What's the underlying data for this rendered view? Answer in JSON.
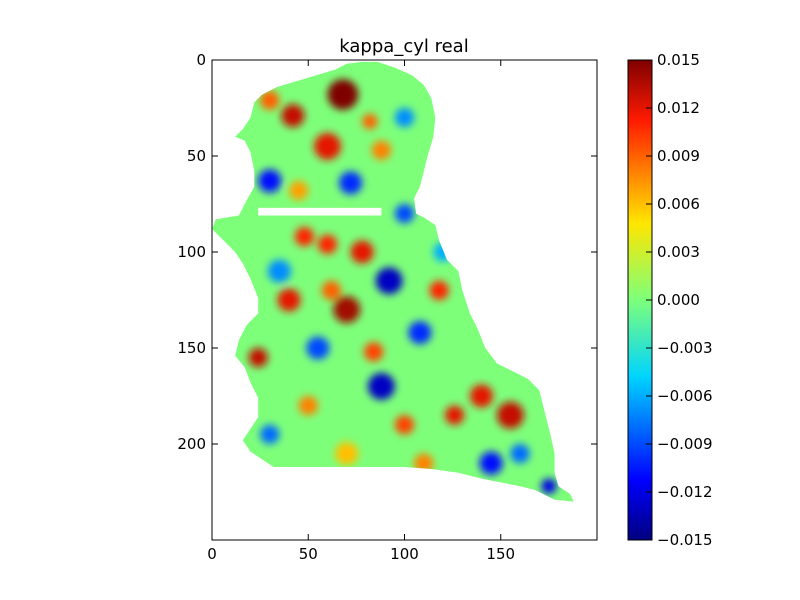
{
  "chart_data": {
    "type": "heatmap",
    "title": "kappa_cyl real",
    "xlabel": "",
    "ylabel": "",
    "xlim": [
      0,
      200
    ],
    "ylim": [
      250,
      0
    ],
    "x_ticks": [
      "0",
      "50",
      "100",
      "150"
    ],
    "y_ticks": [
      "0",
      "50",
      "100",
      "150",
      "200"
    ],
    "colorbar": {
      "colormap": "jet",
      "range": [
        -0.015,
        0.015
      ],
      "ticks": [
        "0.015",
        "0.012",
        "0.009",
        "0.006",
        "0.003",
        "0.000",
        "−0.003",
        "−0.006",
        "−0.009",
        "−0.012",
        "−0.015"
      ]
    },
    "mask_outline_data": [
      [
        14,
        81
      ],
      [
        18,
        73
      ],
      [
        22,
        66
      ],
      [
        22,
        58
      ],
      [
        20,
        48
      ],
      [
        17,
        42
      ],
      [
        12,
        40
      ],
      [
        16,
        36
      ],
      [
        20,
        30
      ],
      [
        22,
        22
      ],
      [
        26,
        18
      ],
      [
        34,
        14
      ],
      [
        44,
        11
      ],
      [
        54,
        8
      ],
      [
        64,
        5
      ],
      [
        70,
        2
      ],
      [
        78,
        1
      ],
      [
        86,
        1
      ],
      [
        95,
        4
      ],
      [
        104,
        8
      ],
      [
        110,
        13
      ],
      [
        114,
        20
      ],
      [
        116,
        30
      ],
      [
        115,
        40
      ],
      [
        112,
        50
      ],
      [
        110,
        58
      ],
      [
        108,
        66
      ],
      [
        105,
        72
      ],
      [
        106,
        80
      ],
      [
        110,
        82
      ],
      [
        116,
        86
      ],
      [
        118,
        94
      ],
      [
        122,
        104
      ],
      [
        128,
        110
      ],
      [
        130,
        120
      ],
      [
        134,
        132
      ],
      [
        138,
        140
      ],
      [
        142,
        150
      ],
      [
        148,
        158
      ],
      [
        156,
        162
      ],
      [
        164,
        166
      ],
      [
        170,
        172
      ],
      [
        172,
        180
      ],
      [
        174,
        188
      ],
      [
        176,
        196
      ],
      [
        178,
        205
      ],
      [
        178,
        215
      ],
      [
        180,
        222
      ],
      [
        186,
        226
      ],
      [
        188,
        230
      ],
      [
        178,
        229
      ],
      [
        168,
        224
      ],
      [
        160,
        222
      ],
      [
        150,
        220
      ],
      [
        140,
        218
      ],
      [
        128,
        215
      ],
      [
        114,
        213
      ],
      [
        100,
        212
      ],
      [
        86,
        212
      ],
      [
        70,
        212
      ],
      [
        56,
        212
      ],
      [
        42,
        212
      ],
      [
        32,
        212
      ],
      [
        26,
        208
      ],
      [
        20,
        204
      ],
      [
        16,
        198
      ],
      [
        20,
        192
      ],
      [
        24,
        186
      ],
      [
        24,
        176
      ],
      [
        20,
        168
      ],
      [
        17,
        160
      ],
      [
        12,
        154
      ],
      [
        14,
        146
      ],
      [
        18,
        138
      ],
      [
        24,
        132
      ],
      [
        24,
        124
      ],
      [
        20,
        114
      ],
      [
        16,
        106
      ],
      [
        12,
        100
      ],
      [
        8,
        96
      ],
      [
        4,
        92
      ],
      [
        0,
        88
      ],
      [
        2,
        83
      ],
      [
        8,
        82
      ]
    ],
    "gap_band_data": {
      "y": [
        77,
        81
      ],
      "x": [
        24,
        88
      ]
    },
    "hotspots_data": [
      {
        "x": 68,
        "y": 18,
        "v": 0.015,
        "r": 8
      },
      {
        "x": 42,
        "y": 29,
        "v": 0.013,
        "r": 6
      },
      {
        "x": 30,
        "y": 21,
        "v": 0.009,
        "r": 5
      },
      {
        "x": 60,
        "y": 45,
        "v": 0.012,
        "r": 7
      },
      {
        "x": 88,
        "y": 47,
        "v": 0.008,
        "r": 5
      },
      {
        "x": 30,
        "y": 63,
        "v": -0.011,
        "r": 6
      },
      {
        "x": 72,
        "y": 64,
        "v": -0.01,
        "r": 6
      },
      {
        "x": 45,
        "y": 68,
        "v": 0.007,
        "r": 5
      },
      {
        "x": 100,
        "y": 80,
        "v": -0.009,
        "r": 5
      },
      {
        "x": 78,
        "y": 100,
        "v": 0.012,
        "r": 6
      },
      {
        "x": 60,
        "y": 96,
        "v": 0.011,
        "r": 5
      },
      {
        "x": 48,
        "y": 92,
        "v": 0.011,
        "r": 5
      },
      {
        "x": 92,
        "y": 115,
        "v": -0.013,
        "r": 7
      },
      {
        "x": 62,
        "y": 120,
        "v": 0.009,
        "r": 5
      },
      {
        "x": 40,
        "y": 125,
        "v": 0.012,
        "r": 6
      },
      {
        "x": 70,
        "y": 130,
        "v": 0.014,
        "r": 7
      },
      {
        "x": 108,
        "y": 142,
        "v": -0.01,
        "r": 6
      },
      {
        "x": 118,
        "y": 120,
        "v": 0.011,
        "r": 5
      },
      {
        "x": 24,
        "y": 155,
        "v": 0.013,
        "r": 5
      },
      {
        "x": 55,
        "y": 150,
        "v": -0.009,
        "r": 6
      },
      {
        "x": 84,
        "y": 152,
        "v": 0.01,
        "r": 5
      },
      {
        "x": 88,
        "y": 170,
        "v": -0.013,
        "r": 7
      },
      {
        "x": 140,
        "y": 175,
        "v": 0.012,
        "r": 6
      },
      {
        "x": 155,
        "y": 185,
        "v": 0.013,
        "r": 7
      },
      {
        "x": 126,
        "y": 185,
        "v": 0.012,
        "r": 5
      },
      {
        "x": 145,
        "y": 210,
        "v": -0.011,
        "r": 6
      },
      {
        "x": 100,
        "y": 190,
        "v": 0.01,
        "r": 5
      },
      {
        "x": 30,
        "y": 195,
        "v": -0.008,
        "r": 5
      },
      {
        "x": 70,
        "y": 205,
        "v": 0.006,
        "r": 6
      },
      {
        "x": 35,
        "y": 110,
        "v": -0.007,
        "r": 6
      },
      {
        "x": 120,
        "y": 100,
        "v": -0.006,
        "r": 5
      },
      {
        "x": 160,
        "y": 205,
        "v": -0.008,
        "r": 5
      },
      {
        "x": 110,
        "y": 210,
        "v": 0.008,
        "r": 5
      },
      {
        "x": 175,
        "y": 222,
        "v": -0.012,
        "r": 4
      },
      {
        "x": 50,
        "y": 180,
        "v": 0.008,
        "r": 5
      },
      {
        "x": 82,
        "y": 32,
        "v": 0.009,
        "r": 4
      },
      {
        "x": 100,
        "y": 30,
        "v": -0.007,
        "r": 5
      }
    ]
  }
}
